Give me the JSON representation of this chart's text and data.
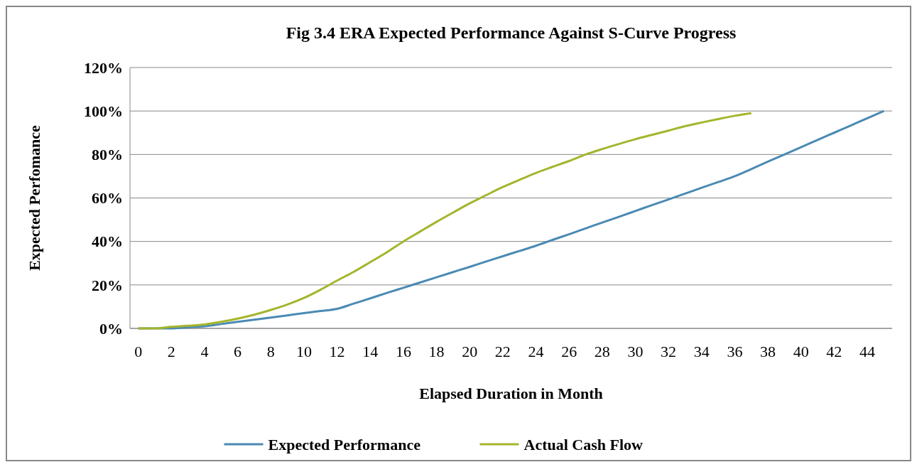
{
  "chart_data": {
    "type": "line",
    "title": "Fig 3.4 ERA Expected Performance Against S-Curve Progress",
    "xlabel": "Elapsed Duration in Month",
    "ylabel": "Expected Perfomance",
    "x": [
      0,
      1,
      2,
      3,
      4,
      5,
      6,
      7,
      8,
      9,
      10,
      11,
      12,
      13,
      14,
      15,
      16,
      17,
      18,
      19,
      20,
      21,
      22,
      23,
      24,
      25,
      26,
      27,
      28,
      29,
      30,
      31,
      32,
      33,
      34,
      35,
      36,
      37,
      38,
      39,
      40,
      41,
      42,
      43,
      44,
      45
    ],
    "xlim": [
      -0.5,
      45.5
    ],
    "xticks": [
      0,
      2,
      4,
      6,
      8,
      10,
      12,
      14,
      16,
      18,
      20,
      22,
      24,
      26,
      28,
      30,
      32,
      34,
      36,
      38,
      40,
      42,
      44
    ],
    "series": [
      {
        "name": "Expected Performance",
        "color": "#4a8ab3",
        "values": [
          0,
          0,
          0,
          0.5,
          1,
          2,
          3,
          4,
          5,
          6,
          7,
          8,
          9,
          11.4,
          13.8,
          16.3,
          18.7,
          21.1,
          23.5,
          25.9,
          28.3,
          30.8,
          33.2,
          35.6,
          38,
          40.7,
          43.3,
          46,
          48.7,
          51.3,
          54,
          56.7,
          59.3,
          62,
          64.7,
          67.3,
          70,
          73.3,
          76.7,
          80,
          83.3,
          86.7,
          90,
          93.3,
          96.7,
          100
        ]
      },
      {
        "name": "Actual Cash Flow",
        "color": "#a4b52c",
        "values": [
          0,
          0,
          0.7,
          1.2,
          1.8,
          3,
          4.5,
          6.3,
          8.5,
          11,
          14,
          17.8,
          22,
          26,
          30.5,
          35,
          40,
          44.5,
          49,
          53.3,
          57.5,
          61.3,
          65,
          68.3,
          71.5,
          74.3,
          77,
          80,
          82.5,
          84.8,
          87,
          89,
          91,
          93,
          94.7,
          96.3,
          97.8,
          99,
          null,
          null,
          null,
          null,
          null,
          null,
          null,
          null
        ]
      }
    ],
    "ylim": [
      0,
      120
    ],
    "yticks": [
      {
        "value": 0,
        "label": "0%"
      },
      {
        "value": 20,
        "label": "20%"
      },
      {
        "value": 40,
        "label": "40%"
      },
      {
        "value": 60,
        "label": "60%"
      },
      {
        "value": 80,
        "label": "80%"
      },
      {
        "value": 100,
        "label": "100%"
      },
      {
        "value": 120,
        "label": "120%"
      }
    ],
    "grid": "y",
    "legend": "bottom",
    "marker": "none",
    "line_style": "solid"
  }
}
